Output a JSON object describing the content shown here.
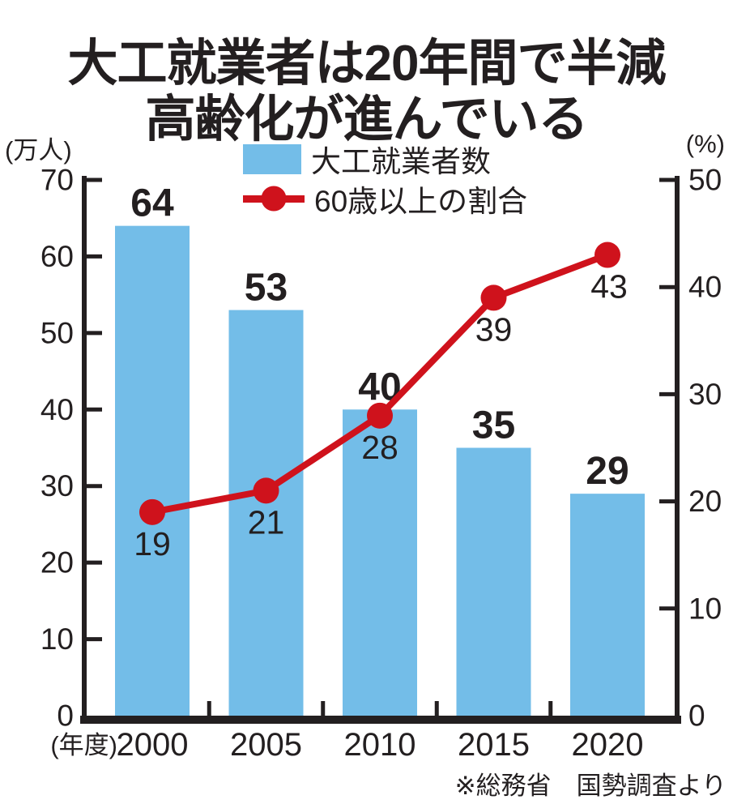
{
  "title": {
    "line1": "大工就業者は20年間で半減",
    "line2": "高齢化が進んでいる"
  },
  "source_note": "※総務省　国勢調査より",
  "colors": {
    "bar": "#73bde8",
    "line": "#cf121c",
    "ink": "#231f20"
  },
  "chart_data": {
    "type": "bar+line",
    "categories": [
      "2000",
      "2005",
      "2010",
      "2015",
      "2020"
    ],
    "x_axis_unit": "(年度)",
    "series": [
      {
        "name": "大工就業者数",
        "type": "bar",
        "axis": "left",
        "values": [
          64,
          53,
          40,
          35,
          29
        ]
      },
      {
        "name": "60歳以上の割合",
        "type": "line",
        "axis": "right",
        "values": [
          19,
          21,
          28,
          39,
          43
        ]
      }
    ],
    "left_axis": {
      "unit": "(万人)",
      "min": 0,
      "max": 70,
      "ticks": [
        70,
        60,
        50,
        40,
        30,
        20,
        10,
        0
      ]
    },
    "right_axis": {
      "unit": "(%)",
      "min": 0,
      "max": 50,
      "ticks": [
        50,
        40,
        30,
        20,
        10,
        0
      ]
    },
    "grid": false,
    "legend_position": "top-center",
    "data_labels": true
  }
}
